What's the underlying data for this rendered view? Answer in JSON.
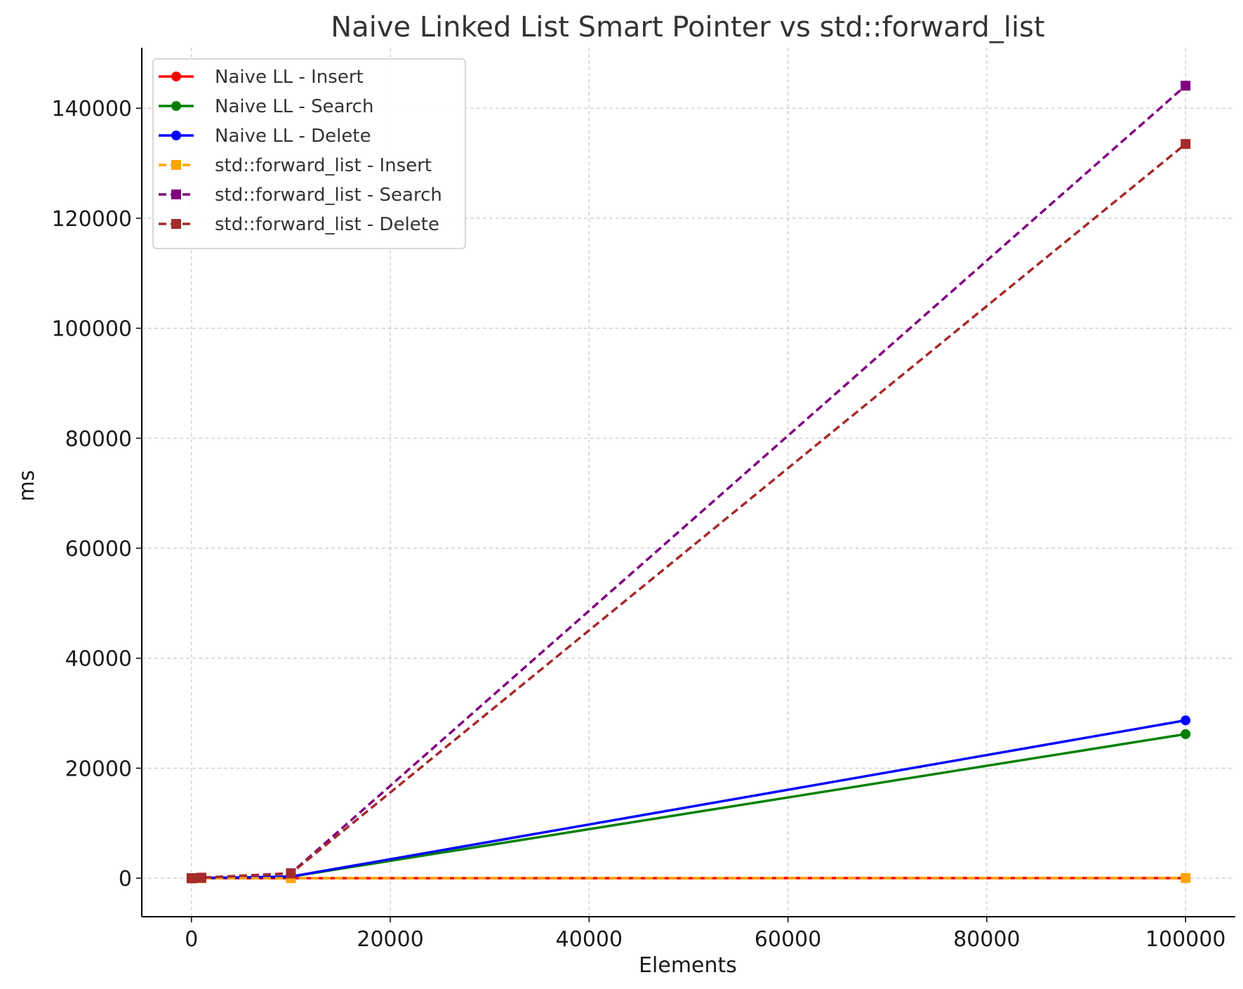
{
  "chart_data": {
    "type": "line",
    "title": "Naive Linked List Smart Pointer vs std::forward_list",
    "xlabel": "Elements",
    "ylabel": "ms",
    "xlim": [
      -5000,
      105000
    ],
    "ylim": [
      -7000,
      151000
    ],
    "xticks": [
      0,
      20000,
      40000,
      60000,
      80000,
      100000
    ],
    "yticks": [
      0,
      20000,
      40000,
      60000,
      80000,
      100000,
      120000,
      140000
    ],
    "grid": true,
    "legend_position": "top-left",
    "x": [
      10,
      100,
      1000,
      10000,
      100000
    ],
    "series": [
      {
        "name": "Naive LL - Insert",
        "values": [
          0,
          0,
          0,
          2,
          22
        ],
        "color": "#ff0000",
        "linestyle": "solid",
        "marker": "circle"
      },
      {
        "name": "Naive LL - Search",
        "values": [
          0,
          3,
          30,
          280,
          26200
        ],
        "color": "#008000",
        "linestyle": "solid",
        "marker": "circle"
      },
      {
        "name": "Naive LL - Delete",
        "values": [
          0,
          3,
          32,
          300,
          28700
        ],
        "color": "#0000ff",
        "linestyle": "solid",
        "marker": "circle"
      },
      {
        "name": "std::forward_list - Insert",
        "values": [
          0,
          0,
          1,
          3,
          40
        ],
        "color": "#ffa500",
        "linestyle": "dashed",
        "marker": "square"
      },
      {
        "name": "std::forward_list - Search",
        "values": [
          0,
          10,
          100,
          900,
          144100
        ],
        "color": "#800080",
        "linestyle": "dashed",
        "marker": "square"
      },
      {
        "name": "std::forward_list - Delete",
        "values": [
          0,
          9,
          90,
          850,
          133500
        ],
        "color": "#a52a2a",
        "linestyle": "dashed",
        "marker": "square"
      }
    ]
  }
}
